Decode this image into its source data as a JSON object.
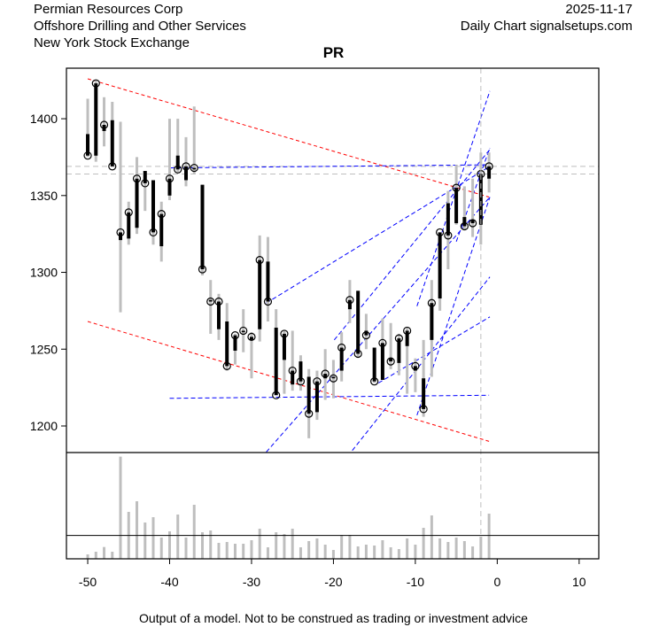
{
  "header": {
    "company": "Permian Resources Corp",
    "industry": "Offshore Drilling and Other Services",
    "exchange": "New York Stock Exchange",
    "date": "2025-11-17",
    "source": "Daily Chart signalsetups.com"
  },
  "footer": {
    "disclaimer": "Output of a model. Not to be construed as trading or investment advice"
  },
  "colors": {
    "body": "#000000",
    "wick": "#bebebe",
    "channel": "#ff0000",
    "trend": "#0000ff",
    "guide": "#bebebe",
    "volume": "#bebebe"
  },
  "chart_data": {
    "type": "candlestick",
    "title": "PR",
    "xlabel": "",
    "ylabel": "",
    "xlim": [
      -52.6,
      12.4
    ],
    "ylim": [
      1182.7,
      1432.9
    ],
    "xticks": [
      -50,
      -40,
      -30,
      -20,
      -10,
      0,
      10
    ],
    "yticks": [
      1200,
      1250,
      1300,
      1350,
      1400
    ],
    "x": [
      -50,
      -49,
      -48,
      -47,
      -46,
      -45,
      -44,
      -43,
      -42,
      -41,
      -40,
      -39,
      -38,
      -37,
      -36,
      -35,
      -34,
      -33,
      -32,
      -31,
      -30,
      -29,
      -28,
      -27,
      -26,
      -25,
      -24,
      -23,
      -22,
      -21,
      -20,
      -19,
      -18,
      -17,
      -16,
      -15,
      -14,
      -13,
      -12,
      -11,
      -10,
      -9,
      -8,
      -7,
      -6,
      -5,
      -4,
      -3,
      -2,
      -1
    ],
    "open": [
      1390,
      1376,
      1392,
      1399,
      1321,
      1322,
      1329,
      1366,
      1360,
      1317,
      1350,
      1376,
      1360,
      1367,
      1357,
      1282,
      1263,
      1268,
      1249,
      1261,
      1256,
      1263,
      1307,
      1264,
      1243,
      1227,
      1242,
      1232,
      1209,
      1231,
      1232,
      1236,
      1276,
      1288,
      1262,
      1251,
      1230,
      1244,
      1241,
      1252,
      1236,
      1231,
      1256,
      1283,
      1345,
      1332,
      1336,
      1334,
      1331,
      1361
    ],
    "high": [
      1413,
      1425,
      1414,
      1411,
      1398,
      1346,
      1375,
      1366,
      1360,
      1346,
      1400,
      1400,
      1388,
      1408,
      1357,
      1295,
      1286,
      1280,
      1260,
      1276,
      1261,
      1324,
      1323,
      1276,
      1262,
      1262,
      1246,
      1237,
      1236,
      1250,
      1243,
      1261,
      1295,
      1288,
      1273,
      1251,
      1270,
      1267,
      1260,
      1264,
      1244,
      1256,
      1295,
      1326,
      1353,
      1370,
      1356,
      1361,
      1378,
      1378
    ],
    "low": [
      1375,
      1372,
      1382,
      1369,
      1274,
      1318,
      1325,
      1340,
      1318,
      1307,
      1347,
      1365,
      1356,
      1364,
      1298,
      1260,
      1256,
      1236,
      1240,
      1248,
      1231,
      1255,
      1268,
      1221,
      1221,
      1223,
      1223,
      1192,
      1204,
      1217,
      1218,
      1229,
      1267,
      1245,
      1250,
      1228,
      1230,
      1237,
      1233,
      1221,
      1222,
      1206,
      1232,
      1275,
      1302,
      1331,
      1328,
      1323,
      1318,
      1352
    ],
    "close": [
      1376,
      1423,
      1396,
      1369,
      1326,
      1339,
      1361,
      1358,
      1326,
      1338,
      1361,
      1367,
      1369,
      1368,
      1302,
      1281,
      1281,
      1239,
      1259,
      1262,
      1258,
      1308,
      1281,
      1220,
      1260,
      1236,
      1229,
      1208,
      1229,
      1234,
      1231,
      1251,
      1282,
      1247,
      1259,
      1229,
      1254,
      1242,
      1257,
      1262,
      1239,
      1211,
      1280,
      1326,
      1324,
      1355,
      1330,
      1332,
      1364,
      1369
    ],
    "volume": [
      15,
      24,
      40,
      24,
      346,
      159,
      195,
      123,
      141,
      72,
      93,
      150,
      72,
      183,
      90,
      96,
      54,
      57,
      51,
      51,
      63,
      102,
      39,
      90,
      84,
      102,
      39,
      60,
      69,
      48,
      30,
      81,
      81,
      42,
      48,
      45,
      63,
      39,
      33,
      69,
      48,
      105,
      147,
      69,
      57,
      72,
      60,
      42,
      75,
      153
    ],
    "volume_reference": 79,
    "horizontal_guides": [
      1369,
      1364
    ],
    "vertical_guide": -2,
    "channel_lines": [
      {
        "from": [
          -50,
          1426
        ],
        "to": [
          -1,
          1349
        ]
      },
      {
        "from": [
          -50,
          1268
        ],
        "to": [
          -1,
          1190
        ]
      }
    ],
    "trend_lines": [
      {
        "from": [
          -40,
          1368
        ],
        "to": [
          -1,
          1370
        ]
      },
      {
        "from": [
          -40,
          1218
        ],
        "to": [
          -1,
          1220
        ]
      },
      {
        "from": [
          -28.2,
          1280
        ],
        "to": [
          -0.9,
          1369
        ]
      },
      {
        "from": [
          -28.2,
          1183
        ],
        "to": [
          -0.9,
          1349
        ]
      },
      {
        "from": [
          -19.9,
          1256
        ],
        "to": [
          -0.9,
          1380
        ]
      },
      {
        "from": [
          -17.7,
          1184
        ],
        "to": [
          -0.9,
          1297
        ]
      },
      {
        "from": [
          -9.8,
          1278
        ],
        "to": [
          -0.9,
          1418
        ]
      },
      {
        "from": [
          -9.8,
          1207
        ],
        "to": [
          -0.9,
          1349
        ]
      },
      {
        "from": [
          -14.5,
          1228
        ],
        "to": [
          -0.9,
          1271
        ]
      },
      {
        "from": [
          -5,
          1320
        ],
        "to": [
          -0.9,
          1381
        ]
      }
    ]
  }
}
